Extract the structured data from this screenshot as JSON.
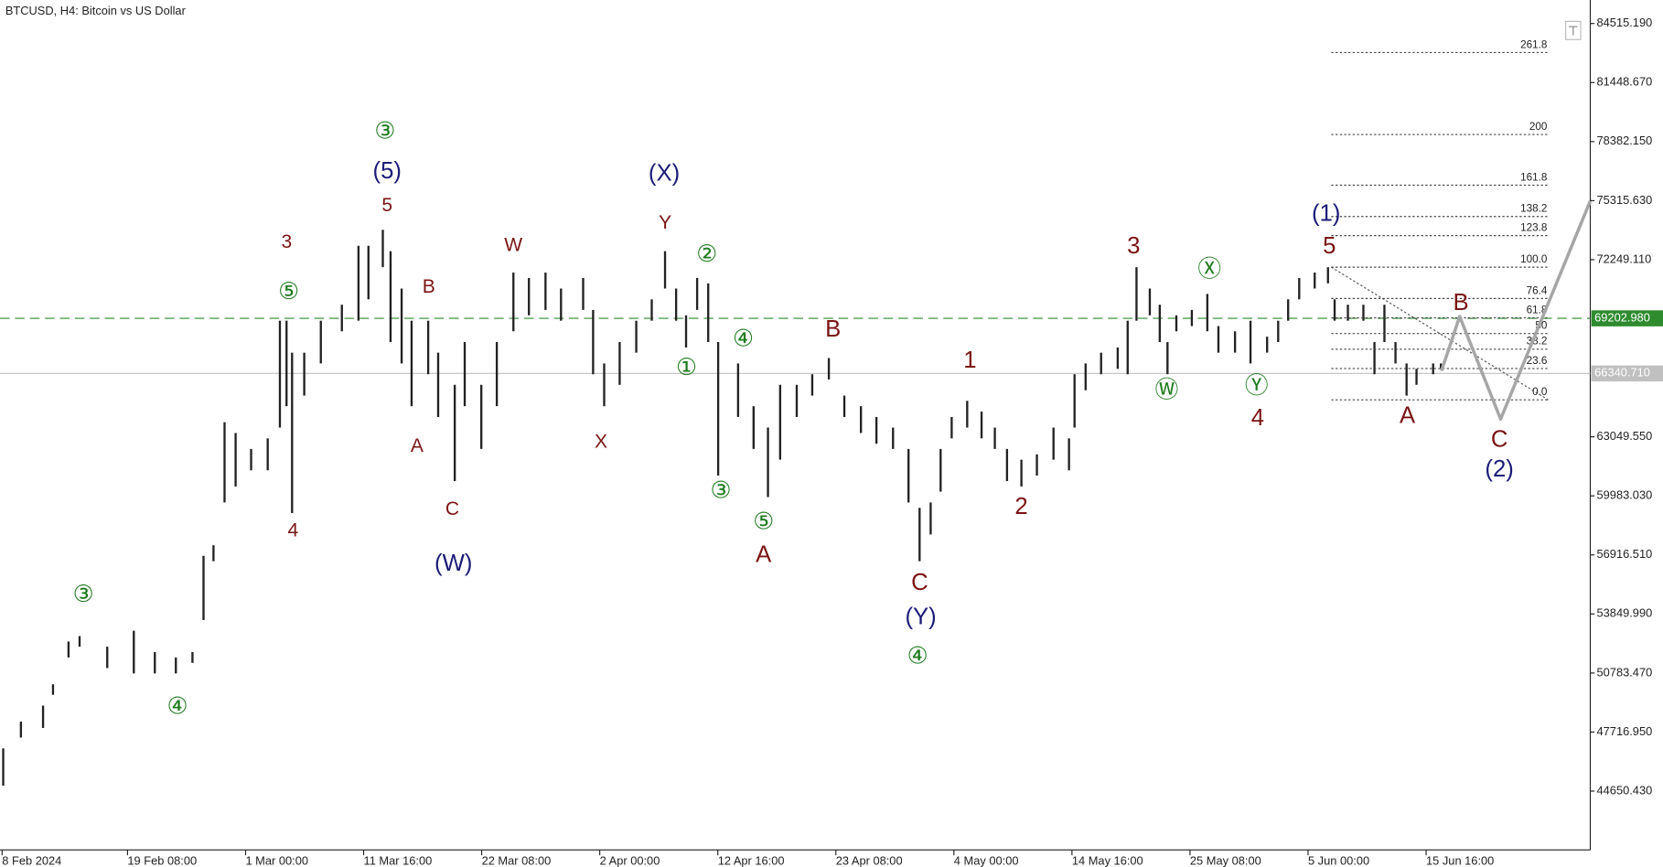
{
  "chart_data": {
    "type": "ohlc",
    "title": "BTCUSD, H4:  Bitcoin vs US Dollar",
    "bar_color": "#222222",
    "x": [
      0.1,
      1.7,
      3.7,
      4.6,
      6,
      7,
      9.5,
      11.9,
      13.8,
      15.7,
      17.2,
      18.2,
      19.1,
      20.1,
      21.1,
      22.5,
      24,
      25.1,
      25.7,
      26.2,
      27.3,
      28.8,
      30.7,
      32.2,
      33.1,
      34.4,
      35.1,
      36.1,
      37,
      38.5,
      39.4,
      40.9,
      41.8,
      43.3,
      44.7,
      46.2,
      47.6,
      49.1,
      50.5,
      52.5,
      53.4,
      54.4,
      55.8,
      57.3,
      58.7,
      59.9,
      60.9,
      61.8,
      62.8,
      63.8,
      64.7,
      66.5,
      67.9,
      69.2,
      70.3,
      71.8,
      73.2,
      74.7,
      76.1,
      77.6,
      79,
      80.5,
      81.9,
      82.9,
      83.9,
      84.8,
      85.8,
      87.2,
      88.5,
      89.7,
      90.8,
      92.1,
      93.5,
      95,
      96.4,
      96.9,
      97.9,
      99.3,
      100.8,
      101.7,
      102.5,
      103.7,
      104.6,
      105.3,
      106.1,
      107.5,
      108.9,
      109.9,
      111.4,
      112.8,
      114.3,
      115.3,
      116.2,
      117.2,
      118.6,
      119.8,
      120.4,
      121.6,
      123,
      124,
      124.9,
      125.9,
      126.9,
      127.8,
      129.3,
      130
    ],
    "high": [
      46870,
      48260,
      49090,
      50200,
      52420,
      52700,
      52150,
      52980,
      51870,
      51590,
      51870,
      56870,
      57420,
      63810,
      63250,
      62420,
      62970,
      69080,
      69080,
      67420,
      67420,
      69080,
      69910,
      72970,
      72970,
      73800,
      72690,
      70750,
      69080,
      69080,
      67420,
      65750,
      67970,
      65750,
      67970,
      71580,
      71300,
      71580,
      70750,
      71300,
      69640,
      66860,
      67970,
      69080,
      70190,
      72690,
      70750,
      69360,
      71300,
      71020,
      67970,
      66860,
      64640,
      63530,
      65750,
      65750,
      66300,
      67140,
      65190,
      64640,
      64080,
      63530,
      62420,
      59360,
      59640,
      62420,
      64080,
      64920,
      64360,
      63530,
      62420,
      61860,
      62140,
      63530,
      62970,
      66300,
      66860,
      67420,
      67690,
      69080,
      71860,
      70750,
      69910,
      67970,
      69360,
      69640,
      70470,
      68800,
      68530,
      69080,
      68250,
      69080,
      70190,
      71300,
      71580,
      71860,
      70190,
      69910,
      69910,
      67970,
      69910,
      67970,
      66860,
      66580,
      66860,
      66860
    ],
    "low": [
      44930,
      47430,
      47930,
      49650,
      51590,
      52150,
      51040,
      50760,
      50760,
      50760,
      51310,
      53530,
      56590,
      59640,
      60470,
      61310,
      61310,
      63530,
      64640,
      59090,
      65190,
      66860,
      68530,
      69080,
      70190,
      71860,
      67970,
      66860,
      64640,
      66300,
      64080,
      60750,
      64640,
      62420,
      64640,
      68530,
      69360,
      69640,
      69080,
      69640,
      66300,
      64640,
      65750,
      67420,
      69080,
      70750,
      69080,
      67690,
      69640,
      67970,
      61040,
      64080,
      62420,
      59920,
      61860,
      64080,
      65190,
      66030,
      64080,
      63250,
      62690,
      62420,
      59640,
      56590,
      57980,
      60200,
      62970,
      63530,
      62970,
      62420,
      60750,
      60470,
      61040,
      61860,
      61310,
      63530,
      65470,
      66300,
      66580,
      66300,
      69080,
      69360,
      67970,
      66300,
      68530,
      68800,
      68530,
      67420,
      67420,
      66860,
      67420,
      67970,
      69080,
      70190,
      70750,
      71020,
      69080,
      69080,
      69080,
      66300,
      67970,
      66860,
      65190,
      65750,
      66300,
      66580
    ],
    "xlim": [
      -0.19,
      143.5
    ],
    "ylim": [
      41597,
      85736
    ],
    "xticks": [
      {
        "value": 0,
        "label": "8 Feb 2024"
      },
      {
        "value": 11.333,
        "label": "19 Feb 08:00"
      },
      {
        "value": 22,
        "label": "1 Mar 00:00"
      },
      {
        "value": 32.667,
        "label": "11 Mar 16:00"
      },
      {
        "value": 43.333,
        "label": "22 Mar 08:00"
      },
      {
        "value": 54,
        "label": "2 Apr 00:00"
      },
      {
        "value": 64.667,
        "label": "12 Apr 16:00"
      },
      {
        "value": 75.333,
        "label": "23 Apr 08:00"
      },
      {
        "value": 86,
        "label": "4 May 00:00"
      },
      {
        "value": 96.667,
        "label": "14 May 16:00"
      },
      {
        "value": 107.333,
        "label": "25 May 08:00"
      },
      {
        "value": 118,
        "label": "5 Jun 00:00"
      },
      {
        "value": 128.667,
        "label": "15 Jun 16:00"
      }
    ],
    "yticks": [
      {
        "value": 84515.19,
        "label": "84515.190"
      },
      {
        "value": 81448.67,
        "label": "81448.670"
      },
      {
        "value": 78382.15,
        "label": "78382.150"
      },
      {
        "value": 75315.63,
        "label": "75315.630"
      },
      {
        "value": 72249.11,
        "label": "72249.110"
      },
      {
        "value": 63049.55,
        "label": "63049.550"
      },
      {
        "value": 59983.03,
        "label": "59983.030"
      },
      {
        "value": 56916.51,
        "label": "56916.510"
      },
      {
        "value": 53849.99,
        "label": "53849.990"
      },
      {
        "value": 50783.47,
        "label": "50783.470"
      },
      {
        "value": 47716.95,
        "label": "47716.950"
      },
      {
        "value": 44650.43,
        "label": "44650.430"
      }
    ],
    "levels": [
      {
        "value": 69202.98,
        "label": "69202.980",
        "color": "#2e8b2e",
        "dashed": true
      },
      {
        "value": 66340.71,
        "label": "66340.710",
        "color": "#c0c0c0",
        "dashed": false
      }
    ],
    "fib": {
      "x": [
        120.1,
        139.7
      ],
      "prices": [
        71860,
        64970
      ],
      "levels": [
        261.8,
        200,
        161.8,
        138.2,
        123.8,
        {
          "value": 100,
          "label": "100.0"
        },
        76.4,
        61.8,
        50,
        38.2,
        23.6,
        {
          "value": 0,
          "label": "0.0"
        }
      ]
    },
    "projection": {
      "color": "#a6a6a6",
      "x": [
        130.05,
        131.7,
        135.4,
        143.5
      ],
      "values": [
        66470,
        69300,
        63970,
        75300
      ]
    },
    "annotations": [
      "③",
      "(5)",
      "5",
      "3",
      "⑤",
      "B",
      "A",
      "C",
      "(W)",
      "4",
      "W",
      "X",
      "Y",
      "(X)",
      "②",
      "①",
      "④",
      "③",
      "⑤",
      "A",
      "B",
      "C",
      "(Y)",
      "④",
      "1",
      "2",
      "3",
      "Ⓦ",
      "Ⓧ",
      "Ⓨ",
      "4",
      "(1)",
      "5",
      "A",
      "B",
      "C",
      "(2)",
      "③",
      "④"
    ]
  }
}
